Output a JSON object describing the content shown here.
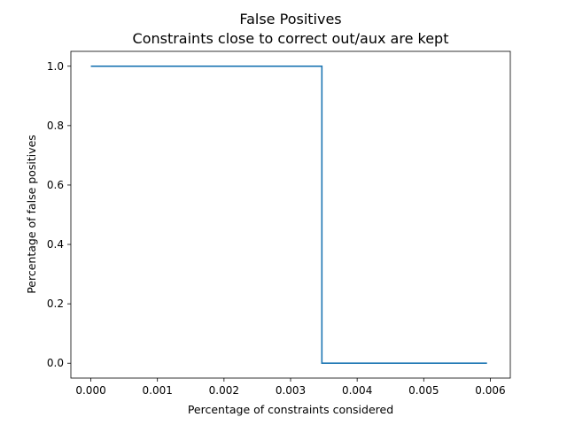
{
  "chart_data": {
    "type": "line",
    "title": "False Positives",
    "subtitle": "Constraints close to correct out/aux are kept",
    "xlabel": "Percentage of constraints considered",
    "ylabel": "Percentage of false positives",
    "xlim": [
      -0.0003,
      0.0063
    ],
    "ylim": [
      -0.05,
      1.05
    ],
    "x_ticks": [
      0.0,
      0.001,
      0.002,
      0.003,
      0.004,
      0.005,
      0.006
    ],
    "x_tick_labels": [
      "0.000",
      "0.001",
      "0.002",
      "0.003",
      "0.004",
      "0.005",
      "0.006"
    ],
    "y_ticks": [
      0.0,
      0.2,
      0.4,
      0.6,
      0.8,
      1.0
    ],
    "y_tick_labels": [
      "0.0",
      "0.2",
      "0.4",
      "0.6",
      "0.8",
      "1.0"
    ],
    "grid": false,
    "legend": "none",
    "series": [
      {
        "color": "#1f77b4",
        "x": [
          0.0,
          0.00347,
          0.00347,
          0.00595
        ],
        "y": [
          1.0,
          1.0,
          0.0,
          0.0
        ]
      }
    ]
  }
}
